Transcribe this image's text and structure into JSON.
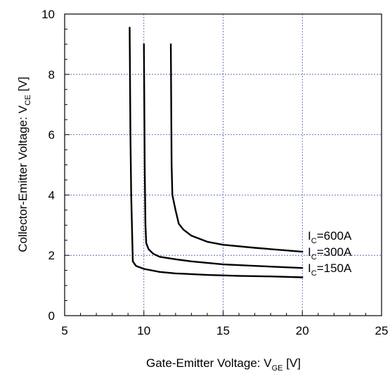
{
  "chart_data": {
    "type": "line",
    "xlabel": {
      "main": "Gate-Emitter Voltage: V",
      "sub": "GE",
      "unit": " [V]"
    },
    "ylabel": {
      "main": "Collector-Emitter Voltage: V",
      "sub": "CE",
      "unit": " [V]"
    },
    "xlim": [
      5,
      25
    ],
    "ylim": [
      0,
      10
    ],
    "xticks": [
      5,
      10,
      15,
      20,
      25
    ],
    "yticks": [
      0,
      2,
      4,
      6,
      8,
      10
    ],
    "grid": true,
    "series": [
      {
        "name": "IC=150A",
        "label": {
          "pre": "I",
          "sub": "C",
          "post": "=150A"
        },
        "color": "#000000",
        "x": [
          9.1,
          9.15,
          9.2,
          9.3,
          9.5,
          10.0,
          11.0,
          12.0,
          14.0,
          16.0,
          18.0,
          20.0
        ],
        "y": [
          9.55,
          6.0,
          4.0,
          1.8,
          1.65,
          1.55,
          1.45,
          1.4,
          1.35,
          1.32,
          1.3,
          1.27
        ]
      },
      {
        "name": "IC=300A",
        "label": {
          "pre": "I",
          "sub": "C",
          "post": "=300A"
        },
        "color": "#000000",
        "x": [
          10.0,
          10.05,
          10.1,
          10.15,
          10.3,
          10.6,
          11.0,
          12.0,
          13.0,
          15.0,
          17.0,
          20.0
        ],
        "y": [
          9.0,
          5.0,
          3.0,
          2.4,
          2.2,
          2.05,
          1.95,
          1.87,
          1.8,
          1.7,
          1.65,
          1.58
        ]
      },
      {
        "name": "IC=600A",
        "label": {
          "pre": "I",
          "sub": "C",
          "post": "=600A"
        },
        "color": "#000000",
        "x": [
          11.7,
          11.75,
          11.8,
          12.0,
          12.2,
          12.5,
          13.0,
          14.0,
          15.0,
          17.0,
          20.0
        ],
        "y": [
          9.0,
          5.0,
          4.0,
          3.5,
          3.05,
          2.85,
          2.65,
          2.45,
          2.35,
          2.25,
          2.12
        ]
      }
    ]
  }
}
